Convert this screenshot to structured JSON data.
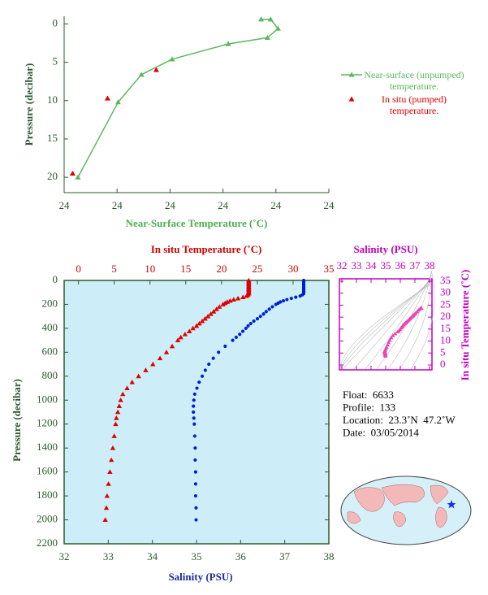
{
  "chart_data": [
    {
      "type": "line",
      "x_label": "Near-Surface Temperature (˚C)",
      "y_label": "Pressure (decibar)",
      "xlim": [
        23.9,
        24.15
      ],
      "xticks": [
        {
          "value": 23.9,
          "label": "24"
        },
        {
          "value": 23.95,
          "label": "24"
        },
        24,
        {
          "value": 24.05,
          "label": "24"
        },
        {
          "value": 24.1,
          "label": "24"
        },
        {
          "value": 24.15,
          "label": "24"
        }
      ],
      "ylim": [
        22,
        -1
      ],
      "yticks": [
        0,
        5,
        10,
        15,
        20
      ],
      "legend": "right",
      "series": [
        {
          "name": "Near-surface (unpumped) temperature.",
          "color": "#5cb85c",
          "marker": "triangle",
          "line": true,
          "x": [
            24.086,
            24.095,
            24.102,
            24.092,
            24.055,
            24.002,
            23.973,
            23.951,
            23.913
          ],
          "values": [
            -0.6,
            -0.6,
            0.6,
            1.8,
            2.6,
            4.6,
            6.6,
            10.2,
            20.0
          ]
        },
        {
          "name": "In situ (pumped) temperature.",
          "color": "#e00000",
          "marker": "triangle",
          "line": false,
          "x": [
            23.987,
            23.941,
            23.908
          ],
          "values": [
            6.0,
            9.7,
            19.5
          ]
        }
      ]
    },
    {
      "type": "profile",
      "x_label": "Salinity (PSU)",
      "xlim": [
        32,
        38
      ],
      "xticks": [
        32,
        33,
        34,
        35,
        36,
        37,
        38
      ],
      "x2_label": "In situ Temperature (˚C)",
      "x2lim": [
        -2,
        35
      ],
      "x2ticks": [
        0,
        5,
        10,
        15,
        20,
        25,
        30,
        35
      ],
      "y_label": "Pressure (decibar)",
      "ylim": [
        2200,
        0
      ],
      "yticks": [
        0,
        200,
        400,
        600,
        800,
        1000,
        1200,
        1400,
        1600,
        1800,
        2000,
        2200
      ],
      "background": "#cdeef8",
      "series": [
        {
          "axis": "x2",
          "color": "#e00000",
          "marker": "triangle",
          "x": [
            23.8,
            23.8,
            23.8,
            23.8,
            23.8,
            23.8,
            23.8,
            23.8,
            23.8,
            23.8,
            23.8,
            23.8,
            23.7,
            23.5,
            23.0,
            22.3,
            21.7,
            21.2,
            20.8,
            20.5,
            20.2,
            19.7,
            19.3,
            18.9,
            18.5,
            18.1,
            17.7,
            17.3,
            16.9,
            16.5,
            16.0,
            15.5,
            14.9,
            14.3,
            13.9,
            13.1,
            12.3,
            11.4,
            10.4,
            9.4,
            8.4,
            7.5,
            6.8,
            6.2,
            5.9,
            5.7,
            5.5,
            5.3,
            5.2,
            5.0,
            4.8,
            4.6,
            4.4,
            4.2,
            4.0,
            3.9,
            3.75
          ],
          "values": [
            0,
            10,
            20,
            30,
            40,
            50,
            60,
            70,
            80,
            90,
            100,
            110,
            120,
            130,
            140,
            150,
            160,
            170,
            180,
            190,
            200,
            220,
            240,
            260,
            280,
            300,
            320,
            340,
            360,
            380,
            400,
            425,
            450,
            475,
            500,
            550,
            600,
            650,
            700,
            750,
            800,
            850,
            900,
            950,
            1000,
            1050,
            1100,
            1150,
            1200,
            1300,
            1400,
            1500,
            1600,
            1700,
            1800,
            1900,
            2000
          ]
        },
        {
          "color": "#0020d0",
          "marker": "circle",
          "x": [
            37.43,
            37.43,
            37.43,
            37.43,
            37.43,
            37.43,
            37.43,
            37.43,
            37.43,
            37.43,
            37.43,
            37.43,
            37.4,
            37.35,
            37.25,
            37.15,
            37.05,
            36.97,
            36.9,
            36.85,
            36.8,
            36.72,
            36.65,
            36.58,
            36.52,
            36.45,
            36.38,
            36.3,
            36.23,
            36.17,
            36.12,
            36.05,
            35.98,
            35.9,
            35.82,
            35.65,
            35.5,
            35.38,
            35.28,
            35.2,
            35.13,
            35.06,
            35.01,
            34.96,
            34.94,
            34.93,
            34.93,
            34.94,
            34.95,
            34.96,
            34.97,
            34.97,
            34.98,
            34.98,
            34.98,
            34.99,
            34.99
          ],
          "values": [
            0,
            10,
            20,
            30,
            40,
            50,
            60,
            70,
            80,
            90,
            100,
            110,
            120,
            130,
            140,
            150,
            160,
            170,
            180,
            190,
            200,
            220,
            240,
            260,
            280,
            300,
            320,
            340,
            360,
            380,
            400,
            425,
            450,
            475,
            500,
            550,
            600,
            650,
            700,
            750,
            800,
            850,
            900,
            950,
            1000,
            1050,
            1100,
            1150,
            1200,
            1300,
            1400,
            1500,
            1600,
            1700,
            1800,
            1900,
            2000
          ]
        }
      ]
    },
    {
      "type": "ts",
      "x_label": "Salinity (PSU)",
      "xlim": [
        32,
        38
      ],
      "xticks": [
        32,
        33,
        34,
        35,
        36,
        37,
        38
      ],
      "y_label": "In situ Temperature (˚C)",
      "ylim": [
        0,
        35
      ],
      "yticks": [
        0,
        5,
        10,
        15,
        20,
        25,
        30,
        35
      ],
      "color": "#e844b8"
    }
  ],
  "info": [
    "Float:  6633",
    "Profile:  133",
    "Location:  23.3˚N  47.2˚W",
    "Date:  03/05/2014"
  ]
}
